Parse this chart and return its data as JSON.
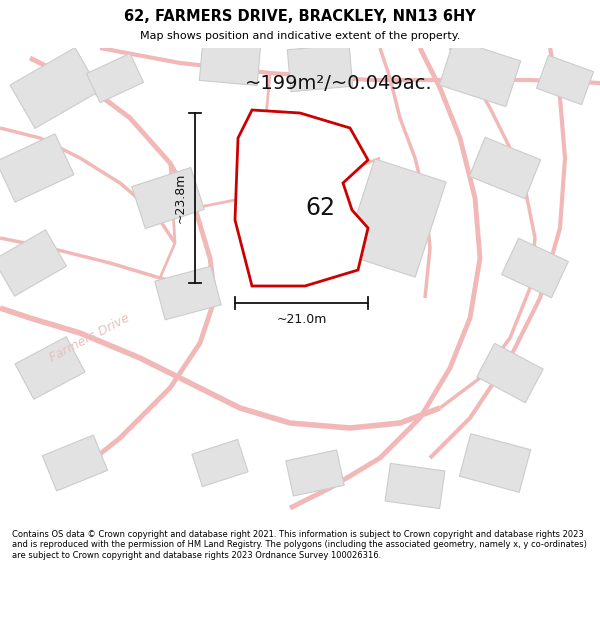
{
  "title": "62, FARMERS DRIVE, BRACKLEY, NN13 6HY",
  "subtitle": "Map shows position and indicative extent of the property.",
  "area_label": "~199m²/~0.049ac.",
  "plot_number": "62",
  "dim_width_label": "~21.0m",
  "dim_height_label": "~23.8m",
  "footer": "Contains OS data © Crown copyright and database right 2021. This information is subject to Crown copyright and database rights 2023 and is reproduced with the permission of HM Land Registry. The polygons (including the associated geometry, namely x, y co-ordinates) are subject to Crown copyright and database rights 2023 Ordnance Survey 100026316.",
  "bg_color": "#f7f7f7",
  "plot_fill": "#ffffff",
  "plot_edge": "#cc0000",
  "road_color": "#f2b8b8",
  "building_color": "#e2e2e2",
  "building_edge": "#cccccc",
  "dim_color": "#111111",
  "street_label": "Farmers Drive",
  "street_label_color": "#e8c0c0"
}
